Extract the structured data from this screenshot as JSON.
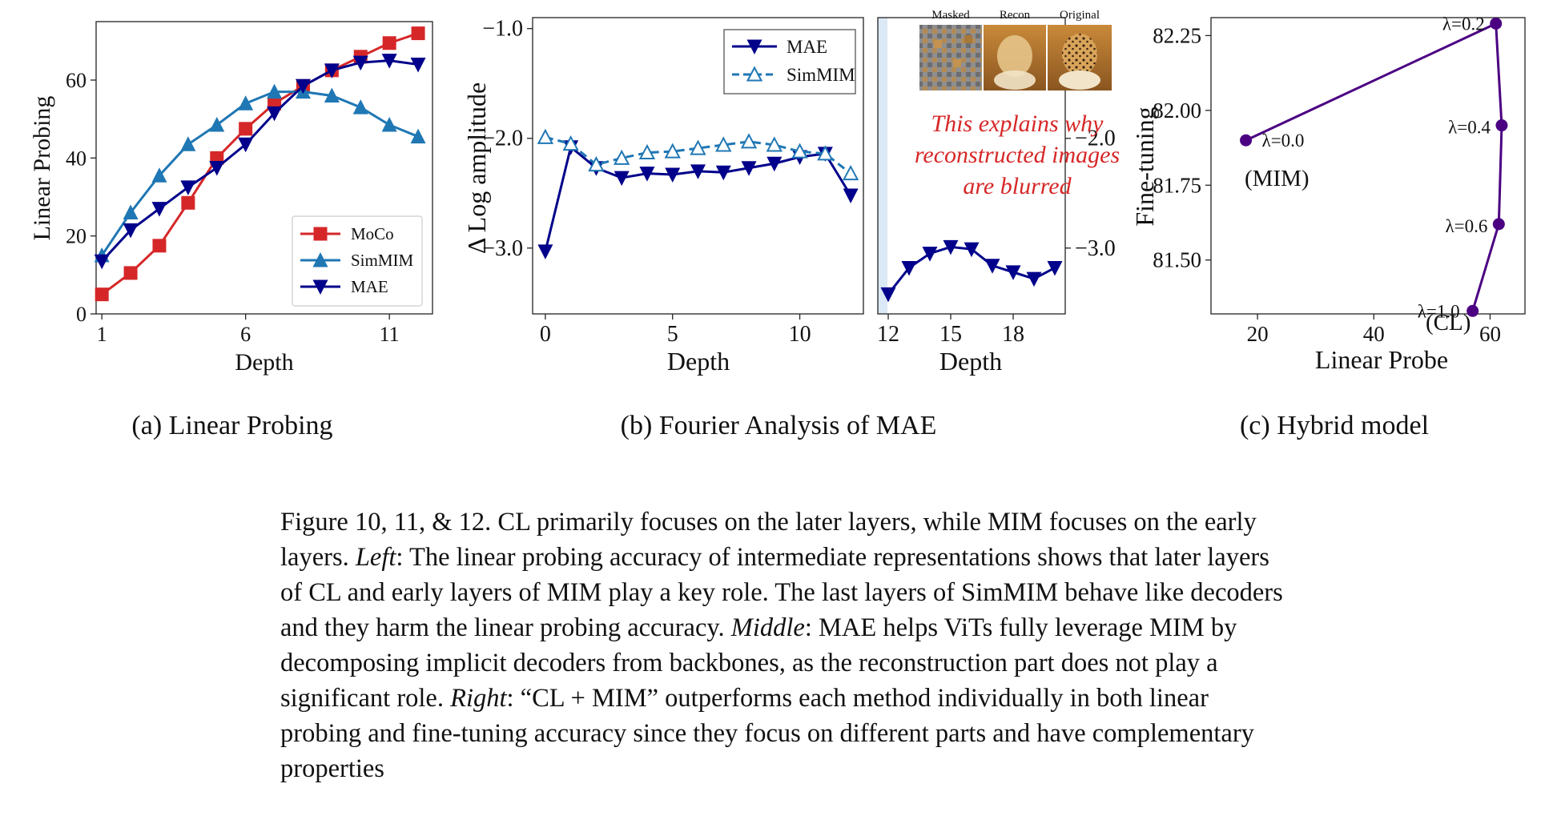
{
  "panels": {
    "a": {
      "caption": "(a) Linear Probing",
      "chart_data": {
        "type": "line",
        "xlabel": "Depth",
        "ylabel": "Linear Probing",
        "xlim": [
          0.8,
          12.5
        ],
        "ylim": [
          0,
          75
        ],
        "xticks": [
          "1",
          "6",
          "11"
        ],
        "xtick_values": [
          1,
          6,
          11
        ],
        "yticks": [
          "0",
          "20",
          "40",
          "60"
        ],
        "ytick_values": [
          0,
          20,
          40,
          60
        ],
        "legend_placement": "lower-right",
        "series": [
          {
            "name": "MoCo",
            "color": "#d62728",
            "marker": "square",
            "x": [
              1,
              2,
              3,
              4,
              5,
              6,
              7,
              8,
              9,
              10,
              11,
              12
            ],
            "y": [
              5,
              10.5,
              17.5,
              28.5,
              40,
              47.5,
              54,
              58.5,
              62.5,
              66,
              69.5,
              72
            ]
          },
          {
            "name": "SimMIM",
            "color": "#1f77b4",
            "marker": "triangle-up",
            "x": [
              1,
              2,
              3,
              4,
              5,
              6,
              7,
              8,
              9,
              10,
              11,
              12
            ],
            "y": [
              15,
              26,
              35.5,
              43.5,
              48.5,
              54,
              57,
              57,
              56,
              53,
              48.5,
              45.5
            ]
          },
          {
            "name": "MAE",
            "color": "#00008b",
            "marker": "triangle-down",
            "x": [
              1,
              2,
              3,
              4,
              5,
              6,
              7,
              8,
              9,
              10,
              11,
              12
            ],
            "y": [
              13.5,
              21.5,
              27,
              32.5,
              37.5,
              43.5,
              51.5,
              58.5,
              62.5,
              64.5,
              65,
              64
            ]
          }
        ]
      }
    },
    "b": {
      "caption": "(b) Fourier Analysis of MAE",
      "chart_data": [
        {
          "type": "line",
          "xlabel": "Depth",
          "ylabel": "Δ Log amplitude",
          "xlim": [
            -0.5,
            12.5
          ],
          "ylim": [
            -3.6,
            -0.9
          ],
          "xticks": [
            "0",
            "5",
            "10"
          ],
          "xtick_values": [
            0,
            5,
            10
          ],
          "yticks": [
            "−1.0",
            "−2.0",
            "−3.0"
          ],
          "ytick_values": [
            -1.0,
            -2.0,
            -3.0
          ],
          "legend_placement": "top-right",
          "series": [
            {
              "name": "MAE",
              "color": "#00008b",
              "marker": "triangle-down",
              "linestyle": "solid",
              "x": [
                0,
                1,
                2,
                3,
                4,
                5,
                6,
                7,
                8,
                9,
                10,
                11,
                12
              ],
              "y": [
                -3.03,
                -2.08,
                -2.27,
                -2.36,
                -2.32,
                -2.33,
                -2.3,
                -2.31,
                -2.27,
                -2.23,
                -2.17,
                -2.14,
                -2.52
              ]
            },
            {
              "name": "SimMIM",
              "color": "#1f77b4",
              "marker": "triangle-up-open",
              "linestyle": "dashed",
              "x": [
                0,
                1,
                2,
                3,
                4,
                5,
                6,
                7,
                8,
                9,
                10,
                11,
                12
              ],
              "y": [
                -1.99,
                -2.05,
                -2.24,
                -2.18,
                -2.13,
                -2.12,
                -2.09,
                -2.06,
                -2.03,
                -2.06,
                -2.12,
                -2.14,
                -2.32
              ]
            }
          ]
        },
        {
          "type": "line",
          "xlabel": "Depth",
          "xlim": [
            11.5,
            20.5
          ],
          "ylim": [
            -3.6,
            -0.9
          ],
          "xticks": [
            "12",
            "15",
            "18"
          ],
          "xtick_values": [
            12,
            15,
            18
          ],
          "yticks_right": [
            "−2.0",
            "−3.0"
          ],
          "ytick_values_right": [
            -2.0,
            -3.0
          ],
          "shaded_band_x": [
            11.5,
            11.9
          ],
          "series": [
            {
              "name": "MAE",
              "color": "#00008b",
              "marker": "triangle-down",
              "linestyle": "solid",
              "x": [
                12,
                13,
                14,
                15,
                16,
                17,
                18,
                19,
                20
              ],
              "y": [
                -3.42,
                -3.18,
                -3.05,
                -2.99,
                -3.01,
                -3.16,
                -3.22,
                -3.28,
                -3.18
              ]
            }
          ]
        }
      ],
      "inset": {
        "labels": [
          "Masked",
          "Recon",
          "Original"
        ],
        "images": [
          "masked-cheetah",
          "reconstructed-cheetah",
          "original-cheetah"
        ]
      },
      "annotation": {
        "lines": [
          "This explains why",
          "reconstructed images",
          "are blurred"
        ],
        "color": "#d62728"
      }
    },
    "c": {
      "caption": "(c) Hybrid model",
      "chart_data": {
        "type": "line",
        "xlabel": "Linear Probe",
        "ylabel": "Fine-tuning",
        "xlim": [
          12,
          66
        ],
        "ylim": [
          81.32,
          82.31
        ],
        "xticks": [
          "20",
          "40",
          "60"
        ],
        "xtick_values": [
          20,
          40,
          60
        ],
        "yticks": [
          "81.50",
          "81.75",
          "82.00",
          "82.25"
        ],
        "ytick_values": [
          81.5,
          81.75,
          82.0,
          82.25
        ],
        "color": "#4b0082",
        "points": [
          {
            "x": 18,
            "y": 81.9,
            "label": "λ=0.0"
          },
          {
            "x": 61,
            "y": 82.29,
            "label": "λ=0.2"
          },
          {
            "x": 62,
            "y": 81.95,
            "label": "λ=0.4"
          },
          {
            "x": 61.5,
            "y": 81.62,
            "label": "λ=0.6"
          },
          {
            "x": 57,
            "y": 81.33,
            "label": "λ=1.0"
          }
        ],
        "annotations": [
          "(MIM)",
          "(CL)"
        ]
      }
    }
  },
  "caption": {
    "lead": "Figure 10, 11, & 12. CL primarily focuses on the later layers, while MIM focuses on the early layers. ",
    "left_label": "Left",
    "left_text": ": The linear probing accuracy of intermediate representations shows that later layers of CL and early layers of MIM play a key role. The last layers of SimMIM behave like decoders and they harm the linear probing accuracy. ",
    "middle_label": "Middle",
    "middle_text": ": MAE helps ViTs fully leverage MIM by decomposing implicit decoders from backbones, as the reconstruction part does not play a significant role. ",
    "right_label": "Right",
    "right_text": ": “CL + MIM” outperforms each method individually in both linear probing and fine-tuning accuracy since they focus on different parts and have complementary properties"
  }
}
